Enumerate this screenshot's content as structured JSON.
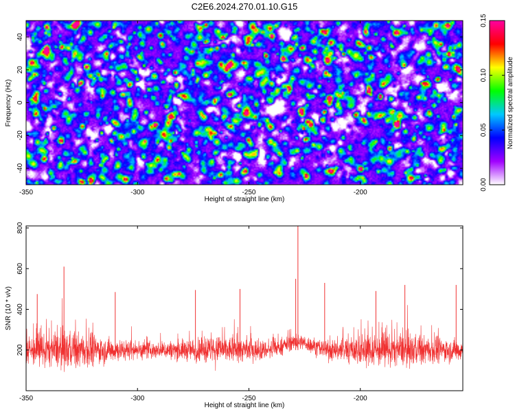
{
  "figure": {
    "title": "C2E6.2024.270.01.10.G15"
  },
  "chart_data": [
    {
      "type": "heatmap",
      "title": "C2E6.2024.270.01.10.G15",
      "xlabel": "Height of straight line (km)",
      "ylabel": "Frequency (Hz)",
      "xlim": [
        -350,
        -154
      ],
      "ylim": [
        -50,
        50
      ],
      "x_ticks": [
        -350,
        -300,
        -250,
        -200
      ],
      "y_ticks": [
        -40,
        -20,
        0,
        20,
        40
      ],
      "x_tick_labels": [
        "-350",
        "-300",
        "-250",
        "-200"
      ],
      "y_tick_labels": [
        "-40",
        "-20",
        "0",
        "20",
        "40"
      ],
      "colorbar": {
        "label": "Normalized spectral amplitude",
        "range": [
          0,
          0.15
        ],
        "ticks": [
          0,
          0.05,
          0.1,
          0.15
        ],
        "tick_labels": [
          "0.00",
          "0.05",
          "0.10",
          "0.15"
        ],
        "colormap": [
          "#ffffff",
          "#a000ff",
          "#0000ff",
          "#00c8ff",
          "#00ff00",
          "#ffff00",
          "#ff0000",
          "#ff00a0"
        ]
      },
      "hotspots": [
        {
          "x": -240,
          "y": 41,
          "value": 0.15
        },
        {
          "x": -235,
          "y": 27,
          "value": 0.13
        },
        {
          "x": -232,
          "y": 9,
          "value": 0.13
        },
        {
          "x": -224,
          "y": -11,
          "value": 0.12
        },
        {
          "x": -214,
          "y": 3,
          "value": 0.12
        },
        {
          "x": -225,
          "y": -22,
          "value": 0.11
        },
        {
          "x": -325,
          "y": -14,
          "value": 0.11
        },
        {
          "x": -200,
          "y": -40,
          "value": 0.11
        },
        {
          "x": -180,
          "y": -17,
          "value": 0.1
        },
        {
          "x": -286,
          "y": -27,
          "value": 0.1
        },
        {
          "x": -341,
          "y": 34,
          "value": 0.1
        },
        {
          "x": -164,
          "y": 36,
          "value": 0.1
        },
        {
          "x": -258,
          "y": -14,
          "value": 0.09
        },
        {
          "x": -196,
          "y": 8,
          "value": 0.09
        },
        {
          "x": -304,
          "y": 11,
          "value": 0.09
        }
      ]
    },
    {
      "type": "line",
      "xlabel": "Height of straight line (km)",
      "ylabel": "SNR (10 * v/v)",
      "xlim": [
        -350,
        -154
      ],
      "ylim": [
        0,
        810
      ],
      "x_ticks": [
        -350,
        -300,
        -250,
        -200
      ],
      "y_ticks": [
        200,
        400,
        600,
        800
      ],
      "x_tick_labels": [
        "-350",
        "-300",
        "-250",
        "-200"
      ],
      "y_tick_labels": [
        "200",
        "400",
        "600",
        "800"
      ],
      "color": "#f03030",
      "baseline": 200,
      "peaks": [
        {
          "x": -228,
          "y": 810
        },
        {
          "x": -333,
          "y": 610
        },
        {
          "x": -229,
          "y": 550
        },
        {
          "x": -216,
          "y": 530
        },
        {
          "x": -180,
          "y": 520
        },
        {
          "x": -157,
          "y": 520
        },
        {
          "x": -254,
          "y": 500
        },
        {
          "x": -274,
          "y": 495
        },
        {
          "x": -310,
          "y": 485
        },
        {
          "x": -193,
          "y": 490
        },
        {
          "x": -345,
          "y": 475
        }
      ]
    }
  ]
}
